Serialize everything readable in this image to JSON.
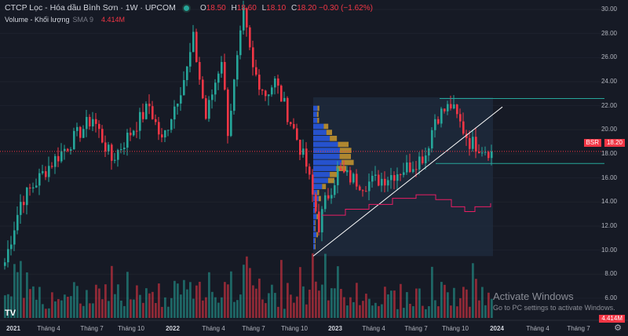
{
  "header": {
    "title": "CTCP Lọc - Hóa dầu Bình Sơn · 1W · UPCOM",
    "open_label": "O",
    "open": "18.50",
    "high_label": "H",
    "high": "18.60",
    "low_label": "L",
    "low": "18.10",
    "close_label": "C",
    "close": "18.20",
    "change": "−0.30 (−1.62%)"
  },
  "volume_legend": {
    "label": "Volume - Khối lượng",
    "sma": "SMA 9",
    "value": "4.414M"
  },
  "symbol_badge": "BSR",
  "price_badge": "18.20",
  "volume_badge": "4.414M",
  "watermark": {
    "line1": "Activate Windows",
    "line2": "Go to PC settings to activate Windows."
  },
  "colors": {
    "up": "#26a69a",
    "down": "#f23645",
    "background": "#161a25",
    "profile_up": "#2962ff",
    "profile_down": "#e0a82e",
    "trend": "#ffffff",
    "line": "#e91e63"
  },
  "chart_data": {
    "type": "candlestick",
    "title": "CTCP Lọc - Hóa dầu Bình Sơn · 1W · UPCOM",
    "y_ticks": [
      "30.00",
      "28.00",
      "26.00",
      "24.00",
      "22.00",
      "20.00",
      "18.00",
      "16.00",
      "14.00",
      "12.00",
      "10.00",
      "8.00",
      "6.00"
    ],
    "x_ticks": [
      {
        "label": "2021",
        "bold": true
      },
      {
        "label": "Tháng 4"
      },
      {
        "label": "Tháng 7"
      },
      {
        "label": "Tháng 10"
      },
      {
        "label": "2022",
        "bold": true
      },
      {
        "label": "Tháng 4"
      },
      {
        "label": "Tháng 7"
      },
      {
        "label": "Tháng 10"
      },
      {
        "label": "2023",
        "bold": true
      },
      {
        "label": "Tháng 4"
      },
      {
        "label": "Tháng 7"
      },
      {
        "label": "Tháng 10"
      },
      {
        "label": "2024",
        "bold": true
      },
      {
        "label": "Tháng 4"
      },
      {
        "label": "Tháng 7"
      }
    ],
    "ylim": [
      6,
      30
    ],
    "close_keypoints_week_price": [
      [
        0,
        9
      ],
      [
        5,
        14
      ],
      [
        14,
        17
      ],
      [
        21,
        19
      ],
      [
        28,
        21
      ],
      [
        34,
        17.5
      ],
      [
        46,
        22
      ],
      [
        50,
        19
      ],
      [
        58,
        25
      ],
      [
        60,
        27.5
      ],
      [
        64,
        21
      ],
      [
        69,
        26
      ],
      [
        71,
        20
      ],
      [
        76,
        29.5
      ],
      [
        79,
        25
      ],
      [
        83,
        23
      ],
      [
        86,
        24
      ],
      [
        92,
        20
      ],
      [
        96,
        17
      ],
      [
        100,
        12
      ],
      [
        102,
        14
      ],
      [
        106,
        16.5
      ],
      [
        114,
        15.5
      ],
      [
        121,
        16
      ],
      [
        129,
        17
      ],
      [
        134,
        18
      ],
      [
        137,
        21
      ],
      [
        142,
        22
      ],
      [
        148,
        19
      ],
      [
        155,
        18.2
      ]
    ],
    "last_volume_m": 4.414
  }
}
